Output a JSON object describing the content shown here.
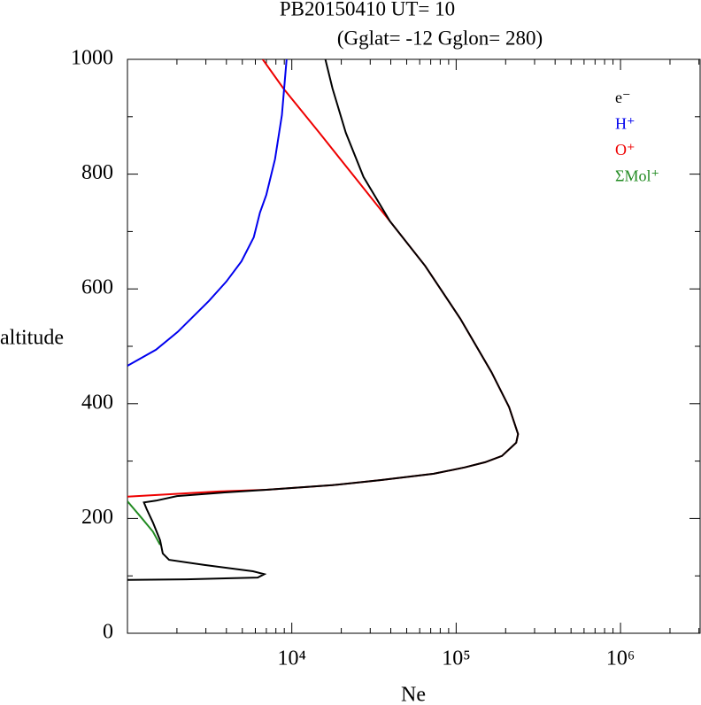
{
  "chart_data": {
    "type": "line",
    "title": "PB20150410   UT=  10",
    "subtitle": "(Gglat= -12   Gglon=  280)",
    "x_label": "Ne",
    "y_label": "altitude",
    "x_scale": "log",
    "xlim": [
      1000,
      3050000
    ],
    "ylim": [
      0,
      1000
    ],
    "xticks": [
      {
        "value": 10000,
        "label": "10⁴"
      },
      {
        "value": 100000,
        "label": "10⁵"
      },
      {
        "value": 1000000,
        "label": "10⁶"
      }
    ],
    "xminorticks": [
      2000,
      3000,
      4000,
      5000,
      6000,
      7000,
      8000,
      9000,
      20000,
      30000,
      40000,
      50000,
      60000,
      70000,
      80000,
      90000,
      200000,
      300000,
      400000,
      500000,
      600000,
      700000,
      800000,
      900000,
      2000000,
      3000000
    ],
    "yticks": [
      0,
      200,
      400,
      600,
      800,
      1000
    ],
    "yminorticks": [
      100,
      300,
      500,
      700,
      900
    ],
    "series": [
      {
        "name": "e⁻",
        "color": "#000000",
        "x": [
          16000,
          17700,
          21300,
          27300,
          39500,
          64800,
          106000,
          164000,
          210000,
          238000,
          232000,
          190000,
          150000,
          113000,
          73000,
          35000,
          17700,
          7000,
          3760,
          2000,
          1490,
          1260,
          1310,
          1430,
          1580,
          1640,
          1790,
          2940,
          5800,
          6800,
          6200,
          2290,
          1000
        ],
        "y": [
          1000,
          949,
          872,
          795,
          718,
          640,
          548,
          455,
          394,
          347,
          332,
          309,
          298,
          289,
          278,
          267,
          258,
          250,
          245,
          239,
          231,
          228,
          216,
          193,
          162,
          139,
          128,
          119,
          108,
          103,
          97,
          94,
          93
        ]
      },
      {
        "name": "H⁺",
        "color": "#0000ee",
        "x": [
          9300,
          8700,
          7900,
          7000,
          6400,
          5870,
          4940,
          4000,
          3130,
          2020,
          1490,
          1000
        ],
        "y": [
          1000,
          903,
          826,
          764,
          733,
          690,
          648,
          613,
          579,
          525,
          494,
          466
        ]
      },
      {
        "name": "O⁺",
        "color": "#ee0000",
        "x": [
          6650,
          8900,
          14700,
          24100,
          39500,
          64800,
          106000,
          164000,
          210000,
          238000,
          232000,
          190000,
          150000,
          113000,
          73000,
          35000,
          17700,
          7000,
          3600,
          1000
        ],
        "y": [
          1000,
          949,
          872,
          795,
          718,
          640,
          548,
          455,
          394,
          347,
          332,
          309,
          298,
          289,
          278,
          267,
          258,
          250,
          247,
          238
        ]
      },
      {
        "name": "ΣMol⁺",
        "color": "#228b22",
        "x": [
          1000,
          1220,
          1430,
          1580
        ],
        "y": [
          230,
          201,
          177,
          154
        ]
      }
    ]
  }
}
